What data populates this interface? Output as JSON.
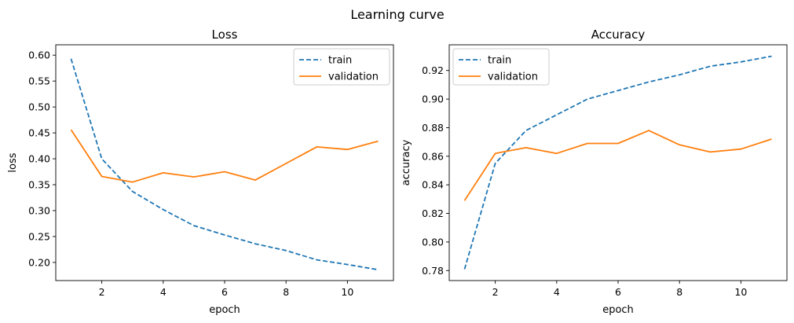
{
  "figure": {
    "suptitle": "Learning curve"
  },
  "chart_data": [
    {
      "type": "line",
      "title": "Loss",
      "xlabel": "epoch",
      "ylabel": "loss",
      "xlim": [
        0.5,
        11.5
      ],
      "ylim": [
        0.165,
        0.62
      ],
      "xticks": [
        2,
        4,
        6,
        8,
        10
      ],
      "yticks": [
        0.2,
        0.25,
        0.3,
        0.35,
        0.4,
        0.45,
        0.5,
        0.55,
        0.6
      ],
      "ytick_labels": [
        "0.20",
        "0.25",
        "0.30",
        "0.35",
        "0.40",
        "0.45",
        "0.50",
        "0.55",
        "0.60"
      ],
      "x": [
        1,
        2,
        3,
        4,
        5,
        6,
        7,
        8,
        9,
        10,
        11
      ],
      "grid": false,
      "legend_position": "upper right",
      "series": [
        {
          "name": "train",
          "color": "#1f77b4",
          "dashed": true,
          "values": [
            0.593,
            0.4,
            0.337,
            0.302,
            0.271,
            0.253,
            0.236,
            0.223,
            0.205,
            0.196,
            0.186
          ]
        },
        {
          "name": "validation",
          "color": "#ff7f0e",
          "dashed": false,
          "values": [
            0.456,
            0.366,
            0.355,
            0.373,
            0.365,
            0.375,
            0.359,
            0.391,
            0.423,
            0.418,
            0.434
          ]
        }
      ]
    },
    {
      "type": "line",
      "title": "Accuracy",
      "xlabel": "epoch",
      "ylabel": "accuracy",
      "xlim": [
        0.5,
        11.5
      ],
      "ylim": [
        0.773,
        0.938
      ],
      "xticks": [
        2,
        4,
        6,
        8,
        10
      ],
      "yticks": [
        0.78,
        0.8,
        0.82,
        0.84,
        0.86,
        0.88,
        0.9,
        0.92
      ],
      "ytick_labels": [
        "0.78",
        "0.80",
        "0.82",
        "0.84",
        "0.86",
        "0.88",
        "0.90",
        "0.92"
      ],
      "x": [
        1,
        2,
        3,
        4,
        5,
        6,
        7,
        8,
        9,
        10,
        11
      ],
      "grid": false,
      "legend_position": "upper left",
      "series": [
        {
          "name": "train",
          "color": "#1f77b4",
          "dashed": true,
          "values": [
            0.781,
            0.855,
            0.878,
            0.889,
            0.9,
            0.906,
            0.912,
            0.917,
            0.923,
            0.926,
            0.93
          ]
        },
        {
          "name": "validation",
          "color": "#ff7f0e",
          "dashed": false,
          "values": [
            0.829,
            0.862,
            0.866,
            0.862,
            0.869,
            0.869,
            0.878,
            0.868,
            0.863,
            0.865,
            0.872
          ]
        }
      ]
    }
  ]
}
